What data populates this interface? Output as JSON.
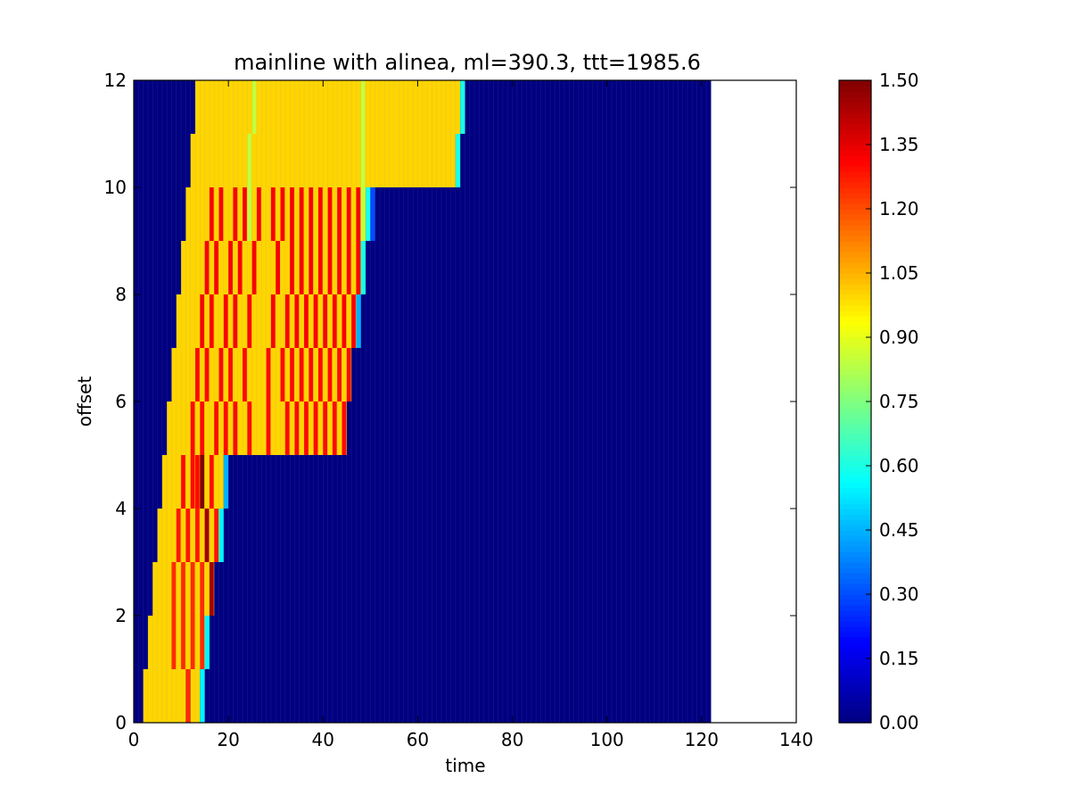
{
  "chart_data": {
    "type": "heatmap",
    "title": "mainline with alinea, ml=390.3, ttt=1985.6",
    "xlabel": "time",
    "ylabel": "offset",
    "xlim": [
      0,
      140
    ],
    "ylim": [
      0,
      12
    ],
    "xticks": [
      "0",
      "20",
      "40",
      "60",
      "80",
      "100",
      "120",
      "140"
    ],
    "yticks": [
      "0",
      "2",
      "4",
      "6",
      "8",
      "10",
      "12"
    ],
    "data_time_max": 122,
    "colormap": "jet",
    "colorbar": {
      "range": [
        0,
        1.5
      ],
      "ticks": [
        "0.00",
        "0.15",
        "0.30",
        "0.45",
        "0.60",
        "0.75",
        "0.90",
        "1.05",
        "1.20",
        "1.35",
        "1.50"
      ]
    },
    "background_value": 0.0,
    "rows": [
      {
        "offset_start": 0,
        "offset_end": 1,
        "segments": [
          {
            "t0": 2,
            "t1": 11,
            "v": 1.0
          },
          {
            "t0": 11,
            "t1": 12,
            "v": 1.25
          },
          {
            "t0": 12,
            "t1": 14,
            "v": 1.0
          },
          {
            "t0": 14,
            "t1": 15,
            "v": 0.55
          }
        ]
      },
      {
        "offset_start": 1,
        "offset_end": 2,
        "segments": [
          {
            "t0": 3,
            "t1": 15,
            "v": 1.0
          },
          {
            "t0": 15,
            "t1": 16,
            "v": 0.55
          }
        ]
      },
      {
        "offset_start": 2,
        "offset_end": 3,
        "segments": [
          {
            "t0": 4,
            "t1": 17,
            "v": 1.0
          }
        ]
      },
      {
        "offset_start": 3,
        "offset_end": 4,
        "segments": [
          {
            "t0": 5,
            "t1": 18,
            "v": 1.0
          },
          {
            "t0": 18,
            "t1": 19,
            "v": 0.55
          }
        ]
      },
      {
        "offset_start": 4,
        "offset_end": 5,
        "segments": [
          {
            "t0": 6,
            "t1": 19,
            "v": 1.0
          },
          {
            "t0": 19,
            "t1": 20,
            "v": 0.45
          }
        ]
      },
      {
        "offset_start": 5,
        "offset_end": 6,
        "segments": [
          {
            "t0": 7,
            "t1": 45,
            "v": 1.0
          }
        ]
      },
      {
        "offset_start": 6,
        "offset_end": 7,
        "segments": [
          {
            "t0": 8,
            "t1": 46,
            "v": 1.0
          }
        ]
      },
      {
        "offset_start": 7,
        "offset_end": 8,
        "segments": [
          {
            "t0": 9,
            "t1": 47,
            "v": 1.0
          },
          {
            "t0": 47,
            "t1": 48,
            "v": 0.45
          }
        ]
      },
      {
        "offset_start": 8,
        "offset_end": 9,
        "segments": [
          {
            "t0": 10,
            "t1": 48,
            "v": 1.0
          },
          {
            "t0": 48,
            "t1": 49,
            "v": 0.6
          }
        ]
      },
      {
        "offset_start": 9,
        "offset_end": 10,
        "segments": [
          {
            "t0": 11,
            "t1": 49,
            "v": 1.0
          },
          {
            "t0": 49,
            "t1": 50,
            "v": 0.6
          },
          {
            "t0": 50,
            "t1": 51,
            "v": 0.3
          }
        ]
      },
      {
        "offset_start": 10,
        "offset_end": 11,
        "segments": [
          {
            "t0": 12,
            "t1": 68,
            "v": 1.0
          },
          {
            "t0": 68,
            "t1": 69,
            "v": 0.6
          }
        ]
      },
      {
        "offset_start": 11,
        "offset_end": 12,
        "segments": [
          {
            "t0": 13,
            "t1": 69,
            "v": 1.0
          },
          {
            "t0": 69,
            "t1": 70,
            "v": 0.6
          }
        ]
      }
    ],
    "stripes": [
      {
        "offset_start": 1,
        "offset_end": 2,
        "times": [
          8,
          10,
          12,
          14
        ],
        "v": 1.25
      },
      {
        "offset_start": 2,
        "offset_end": 3,
        "times": [
          8,
          10,
          12,
          14,
          16
        ],
        "v": 1.25
      },
      {
        "offset_start": 3,
        "offset_end": 4,
        "times": [
          9,
          11,
          13,
          15,
          17
        ],
        "v": 1.28
      },
      {
        "offset_start": 4,
        "offset_end": 5,
        "times": [
          10,
          12,
          13,
          14,
          16
        ],
        "v": 1.3
      },
      {
        "offset_start": 5,
        "offset_end": 6,
        "times": [
          12,
          14,
          17,
          19,
          21,
          24,
          28,
          32,
          34,
          36,
          38,
          40,
          42,
          44
        ],
        "v": 1.3
      },
      {
        "offset_start": 6,
        "offset_end": 7,
        "times": [
          13,
          15,
          18,
          20,
          23,
          28,
          31,
          33,
          35,
          37,
          39,
          41,
          43,
          45
        ],
        "v": 1.3
      },
      {
        "offset_start": 7,
        "offset_end": 8,
        "times": [
          14,
          16,
          19,
          21,
          24,
          29,
          32,
          34,
          36,
          38,
          40,
          42,
          44,
          46
        ],
        "v": 1.32
      },
      {
        "offset_start": 8,
        "offset_end": 9,
        "times": [
          15,
          17,
          20,
          22,
          25,
          30,
          33,
          35,
          37,
          39,
          41,
          43,
          45,
          47
        ],
        "v": 1.32
      },
      {
        "offset_start": 9,
        "offset_end": 10,
        "times": [
          16,
          18,
          21,
          23,
          26,
          29,
          31,
          33,
          35,
          37,
          39,
          41,
          43,
          45,
          47
        ],
        "v": 1.32
      }
    ],
    "dark_stripes": [
      {
        "offset_start": 2,
        "offset_end": 3,
        "times": [
          16
        ],
        "v": 1.45
      },
      {
        "offset_start": 3,
        "offset_end": 4,
        "times": [
          15
        ],
        "v": 1.45
      },
      {
        "offset_start": 4,
        "offset_end": 5,
        "times": [
          14
        ],
        "v": 1.5
      }
    ],
    "light_stripes": [
      {
        "offset_start": 9,
        "offset_end": 10,
        "times": [
          24,
          48
        ],
        "v": 0.85
      },
      {
        "offset_start": 10,
        "offset_end": 11,
        "times": [
          24,
          48
        ],
        "v": 0.85
      },
      {
        "offset_start": 11,
        "offset_end": 12,
        "times": [
          25,
          48
        ],
        "v": 0.85
      }
    ]
  }
}
